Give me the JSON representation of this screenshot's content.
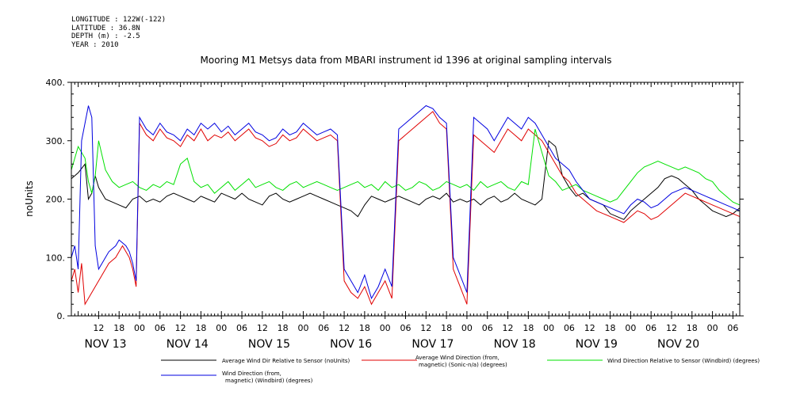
{
  "meta_lines": [
    "LONGITUDE : 122W(-122)",
    "LATITUDE : 36.8N",
    "DEPTH (m) : -2.5",
    "YEAR : 2010"
  ],
  "chart_data": {
    "type": "line",
    "title": "Mooring M1 Metsys data from MBARI instrument id 1396 at original sampling intervals",
    "ylabel": "noUnits",
    "xlabel": "",
    "ylim": [
      0,
      400
    ],
    "yticks": [
      0,
      100,
      200,
      300,
      400
    ],
    "ytick_labels": [
      "0.",
      "100.",
      "200.",
      "300.",
      "400."
    ],
    "xrange_hours": [
      0,
      196
    ],
    "hour_ticks": [
      {
        "t": 8,
        "label": "12"
      },
      {
        "t": 14,
        "label": "18"
      },
      {
        "t": 20,
        "label": "00"
      },
      {
        "t": 26,
        "label": "06"
      },
      {
        "t": 32,
        "label": "12"
      },
      {
        "t": 38,
        "label": "18"
      },
      {
        "t": 44,
        "label": "00"
      },
      {
        "t": 50,
        "label": "06"
      },
      {
        "t": 56,
        "label": "12"
      },
      {
        "t": 62,
        "label": "18"
      },
      {
        "t": 68,
        "label": "00"
      },
      {
        "t": 74,
        "label": "06"
      },
      {
        "t": 80,
        "label": "12"
      },
      {
        "t": 86,
        "label": "18"
      },
      {
        "t": 92,
        "label": "00"
      },
      {
        "t": 98,
        "label": "06"
      },
      {
        "t": 104,
        "label": "12"
      },
      {
        "t": 110,
        "label": "18"
      },
      {
        "t": 116,
        "label": "00"
      },
      {
        "t": 122,
        "label": "06"
      },
      {
        "t": 128,
        "label": "12"
      },
      {
        "t": 134,
        "label": "18"
      },
      {
        "t": 140,
        "label": "00"
      },
      {
        "t": 146,
        "label": "06"
      },
      {
        "t": 152,
        "label": "12"
      },
      {
        "t": 158,
        "label": "18"
      },
      {
        "t": 164,
        "label": "00"
      },
      {
        "t": 170,
        "label": "06"
      },
      {
        "t": 176,
        "label": "12"
      },
      {
        "t": 182,
        "label": "18"
      },
      {
        "t": 188,
        "label": "00"
      },
      {
        "t": 194,
        "label": "06"
      }
    ],
    "day_labels": [
      {
        "t": 10,
        "label": "NOV 13"
      },
      {
        "t": 34,
        "label": "NOV 14"
      },
      {
        "t": 58,
        "label": "NOV 15"
      },
      {
        "t": 82,
        "label": "NOV 16"
      },
      {
        "t": 106,
        "label": "NOV 17"
      },
      {
        "t": 130,
        "label": "NOV 18"
      },
      {
        "t": 154,
        "label": "NOV 19"
      },
      {
        "t": 178,
        "label": "NOV 20"
      }
    ],
    "series": [
      {
        "name": "Average Wind Dir Relative to Sensor (noUnits)",
        "color": "#000000",
        "x": [
          0,
          2,
          4,
          5,
          6,
          7,
          8,
          10,
          12,
          14,
          16,
          18,
          20,
          22,
          24,
          26,
          28,
          30,
          32,
          34,
          36,
          38,
          40,
          42,
          44,
          46,
          48,
          50,
          52,
          54,
          56,
          58,
          60,
          62,
          64,
          66,
          68,
          70,
          72,
          74,
          76,
          78,
          80,
          82,
          84,
          86,
          88,
          90,
          92,
          94,
          96,
          98,
          100,
          102,
          104,
          106,
          108,
          110,
          112,
          114,
          116,
          118,
          120,
          122,
          124,
          126,
          128,
          130,
          132,
          134,
          136,
          138,
          140,
          142,
          144,
          146,
          148,
          150,
          152,
          154,
          156,
          158,
          160,
          162,
          164,
          166,
          168,
          170,
          172,
          174,
          176,
          178,
          180,
          182,
          184,
          186,
          188,
          190,
          192,
          194,
          196
        ],
        "y": [
          235,
          245,
          260,
          200,
          210,
          240,
          220,
          200,
          195,
          190,
          185,
          200,
          205,
          195,
          200,
          195,
          205,
          210,
          205,
          200,
          195,
          205,
          200,
          195,
          210,
          205,
          200,
          210,
          200,
          195,
          190,
          205,
          210,
          200,
          195,
          200,
          205,
          210,
          205,
          200,
          195,
          190,
          185,
          180,
          170,
          190,
          205,
          200,
          195,
          200,
          205,
          200,
          195,
          190,
          200,
          205,
          200,
          210,
          195,
          200,
          195,
          200,
          190,
          200,
          205,
          195,
          200,
          210,
          200,
          195,
          190,
          200,
          300,
          290,
          240,
          220,
          205,
          210,
          200,
          195,
          190,
          175,
          170,
          165,
          180,
          190,
          200,
          210,
          220,
          235,
          240,
          235,
          225,
          215,
          200,
          190,
          180,
          175,
          170,
          175,
          185
        ]
      },
      {
        "name": "Average Wind Direction (from, magnetic) (Sonic-n/a) (degrees)",
        "color": "#e00000",
        "x": [
          0,
          1,
          2,
          3,
          4,
          5,
          6,
          7,
          8,
          9,
          10,
          11,
          12,
          13,
          14,
          15,
          16,
          17,
          18,
          19,
          20,
          22,
          24,
          26,
          28,
          30,
          32,
          34,
          36,
          38,
          40,
          42,
          44,
          46,
          48,
          50,
          52,
          54,
          56,
          58,
          60,
          62,
          64,
          66,
          68,
          70,
          72,
          74,
          76,
          78,
          80,
          82,
          84,
          86,
          88,
          90,
          92,
          94,
          96,
          98,
          100,
          102,
          104,
          106,
          108,
          110,
          112,
          114,
          116,
          118,
          120,
          122,
          124,
          126,
          128,
          130,
          132,
          134,
          136,
          138,
          140,
          142,
          144,
          146,
          148,
          150,
          152,
          154,
          156,
          158,
          160,
          162,
          164,
          166,
          168,
          170,
          172,
          174,
          176,
          178,
          180,
          182,
          184,
          186,
          188,
          190,
          192,
          194,
          196
        ],
        "y": [
          60,
          80,
          40,
          90,
          20,
          30,
          40,
          50,
          60,
          70,
          80,
          90,
          95,
          100,
          110,
          120,
          110,
          100,
          80,
          50,
          330,
          310,
          300,
          320,
          305,
          300,
          290,
          310,
          300,
          320,
          300,
          310,
          305,
          315,
          300,
          310,
          320,
          305,
          300,
          290,
          295,
          310,
          300,
          305,
          320,
          310,
          300,
          305,
          310,
          300,
          60,
          40,
          30,
          50,
          20,
          40,
          60,
          30,
          300,
          310,
          320,
          330,
          340,
          350,
          330,
          320,
          80,
          50,
          20,
          310,
          300,
          290,
          280,
          300,
          320,
          310,
          300,
          320,
          310,
          300,
          280,
          260,
          240,
          230,
          210,
          200,
          190,
          180,
          175,
          170,
          165,
          160,
          170,
          180,
          175,
          165,
          170,
          180,
          190,
          200,
          210,
          205,
          200,
          195,
          190,
          185,
          180,
          175,
          170
        ]
      },
      {
        "name": "Wind Direction Relative to Sensor (Windbird) (degrees)",
        "color": "#00e000",
        "x": [
          0,
          2,
          4,
          5,
          6,
          7,
          8,
          10,
          12,
          14,
          16,
          18,
          20,
          22,
          24,
          26,
          28,
          30,
          32,
          34,
          36,
          38,
          40,
          42,
          44,
          46,
          48,
          50,
          52,
          54,
          56,
          58,
          60,
          62,
          64,
          66,
          68,
          70,
          72,
          74,
          76,
          78,
          80,
          82,
          84,
          86,
          88,
          90,
          92,
          94,
          96,
          98,
          100,
          102,
          104,
          106,
          108,
          110,
          112,
          114,
          116,
          118,
          120,
          122,
          124,
          126,
          128,
          130,
          132,
          134,
          136,
          138,
          140,
          142,
          144,
          146,
          148,
          150,
          152,
          154,
          156,
          158,
          160,
          162,
          164,
          166,
          168,
          170,
          172,
          174,
          176,
          178,
          180,
          182,
          184,
          186,
          188,
          190,
          192,
          194,
          196
        ],
        "y": [
          250,
          290,
          270,
          230,
          210,
          240,
          300,
          250,
          230,
          220,
          225,
          230,
          220,
          215,
          225,
          220,
          230,
          225,
          260,
          270,
          230,
          220,
          225,
          210,
          220,
          230,
          215,
          225,
          235,
          220,
          225,
          230,
          220,
          215,
          225,
          230,
          220,
          225,
          230,
          225,
          220,
          215,
          220,
          225,
          230,
          220,
          225,
          215,
          230,
          220,
          225,
          215,
          220,
          230,
          225,
          215,
          220,
          230,
          225,
          220,
          225,
          215,
          230,
          220,
          225,
          230,
          220,
          215,
          230,
          225,
          320,
          280,
          240,
          230,
          215,
          220,
          225,
          215,
          210,
          205,
          200,
          195,
          200,
          215,
          230,
          245,
          255,
          260,
          265,
          260,
          255,
          250,
          255,
          250,
          245,
          235,
          230,
          215,
          205,
          195,
          190
        ]
      },
      {
        "name": "Wind Direction (from, magnetic) (Windbird) (degrees)",
        "color": "#0000e0",
        "x": [
          0,
          1,
          2,
          3,
          4,
          5,
          6,
          7,
          8,
          9,
          10,
          11,
          12,
          13,
          14,
          15,
          16,
          17,
          18,
          19,
          20,
          22,
          24,
          26,
          28,
          30,
          32,
          34,
          36,
          38,
          40,
          42,
          44,
          46,
          48,
          50,
          52,
          54,
          56,
          58,
          60,
          62,
          64,
          66,
          68,
          70,
          72,
          74,
          76,
          78,
          80,
          82,
          84,
          86,
          88,
          90,
          92,
          94,
          96,
          98,
          100,
          102,
          104,
          106,
          108,
          110,
          112,
          114,
          116,
          118,
          120,
          122,
          124,
          126,
          128,
          130,
          132,
          134,
          136,
          138,
          140,
          142,
          144,
          146,
          148,
          150,
          152,
          154,
          156,
          158,
          160,
          162,
          164,
          166,
          168,
          170,
          172,
          174,
          176,
          178,
          180,
          182,
          184,
          186,
          188,
          190,
          192,
          194,
          196
        ],
        "y": [
          100,
          120,
          80,
          300,
          330,
          360,
          340,
          120,
          80,
          90,
          100,
          110,
          115,
          120,
          130,
          125,
          120,
          110,
          90,
          60,
          340,
          320,
          310,
          330,
          315,
          310,
          300,
          320,
          310,
          330,
          320,
          330,
          315,
          325,
          310,
          320,
          330,
          315,
          310,
          300,
          305,
          320,
          310,
          315,
          330,
          320,
          310,
          315,
          320,
          310,
          80,
          60,
          40,
          70,
          30,
          50,
          80,
          50,
          320,
          330,
          340,
          350,
          360,
          355,
          340,
          330,
          100,
          70,
          40,
          340,
          330,
          320,
          300,
          320,
          340,
          330,
          320,
          340,
          330,
          310,
          290,
          270,
          260,
          250,
          230,
          215,
          200,
          195,
          190,
          185,
          180,
          175,
          190,
          200,
          195,
          185,
          190,
          200,
          210,
          215,
          220,
          215,
          210,
          205,
          200,
          195,
          190,
          185,
          180
        ]
      }
    ]
  }
}
